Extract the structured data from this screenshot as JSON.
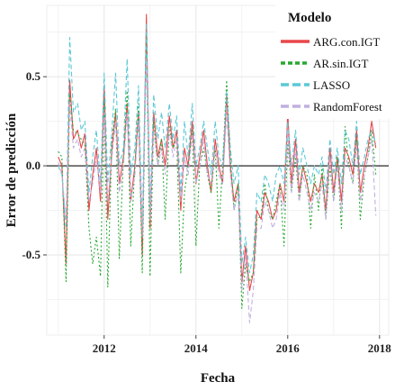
{
  "chart_data": {
    "type": "line",
    "xlabel": "Fecha",
    "ylabel": "Error de predicción",
    "legend_title": "Modelo",
    "legend_position": "top-right",
    "grid": true,
    "xlim": [
      2010.75,
      2018.2
    ],
    "ylim": [
      -0.95,
      0.9
    ],
    "x_ticks": [
      2012,
      2014,
      2016,
      2018
    ],
    "y_ticks": [
      -0.5,
      0.0,
      0.5
    ],
    "y_tick_labels": [
      "-0.5",
      "0.0",
      "0.5"
    ],
    "reference_line": 0.0,
    "x": [
      2011.0,
      2011.08,
      2011.17,
      2011.25,
      2011.33,
      2011.42,
      2011.5,
      2011.58,
      2011.67,
      2011.75,
      2011.83,
      2011.92,
      2012.0,
      2012.08,
      2012.17,
      2012.25,
      2012.33,
      2012.42,
      2012.5,
      2012.58,
      2012.67,
      2012.75,
      2012.83,
      2012.92,
      2013.0,
      2013.08,
      2013.17,
      2013.25,
      2013.33,
      2013.42,
      2013.5,
      2013.58,
      2013.67,
      2013.75,
      2013.83,
      2013.92,
      2014.0,
      2014.08,
      2014.17,
      2014.25,
      2014.33,
      2014.42,
      2014.5,
      2014.58,
      2014.67,
      2014.75,
      2014.83,
      2014.92,
      2015.0,
      2015.08,
      2015.17,
      2015.25,
      2015.33,
      2015.42,
      2015.5,
      2015.58,
      2015.67,
      2015.75,
      2015.83,
      2015.92,
      2016.0,
      2016.08,
      2016.17,
      2016.25,
      2016.33,
      2016.42,
      2016.5,
      2016.58,
      2016.67,
      2016.75,
      2016.83,
      2016.92,
      2017.0,
      2017.08,
      2017.17,
      2017.25,
      2017.33,
      2017.42,
      2017.5,
      2017.58,
      2017.67,
      2017.75,
      2017.83,
      2017.92
    ],
    "series": [
      {
        "name": "ARG.con.IGT",
        "color": "#e8474a",
        "style": "solid",
        "values": [
          0.05,
          0.0,
          -0.55,
          0.48,
          0.15,
          0.2,
          0.1,
          0.18,
          -0.25,
          -0.05,
          0.1,
          -0.2,
          0.45,
          -0.3,
          0.1,
          0.3,
          -0.1,
          0.05,
          0.35,
          -0.2,
          0.0,
          0.3,
          -0.5,
          0.85,
          -0.35,
          0.3,
          0.05,
          0.15,
          0.0,
          0.28,
          0.1,
          0.2,
          -0.25,
          0.1,
          0.0,
          0.25,
          -0.1,
          0.05,
          0.2,
          0.0,
          -0.15,
          0.15,
          0.0,
          -0.1,
          0.4,
          0.0,
          -0.2,
          -0.1,
          -0.65,
          -0.45,
          -0.7,
          -0.6,
          -0.25,
          -0.3,
          -0.15,
          -0.2,
          -0.3,
          -0.25,
          -0.1,
          -0.2,
          0.3,
          -0.1,
          0.15,
          -0.15,
          0.0,
          -0.1,
          -0.2,
          -0.1,
          -0.15,
          -0.05,
          -0.25,
          0.1,
          -0.15,
          0.05,
          -0.2,
          0.1,
          0.05,
          -0.05,
          0.2,
          -0.15,
          0.0,
          0.1,
          0.25,
          0.1
        ]
      },
      {
        "name": "AR.sin.IGT",
        "color": "#28a832",
        "style": "dotted",
        "values": [
          0.08,
          0.05,
          -0.65,
          0.4,
          0.2,
          0.18,
          0.15,
          0.12,
          -0.35,
          -0.55,
          -0.4,
          -0.62,
          0.38,
          -0.68,
          0.15,
          0.32,
          -0.52,
          0.05,
          0.42,
          -0.45,
          0.0,
          0.35,
          -0.6,
          0.75,
          -0.62,
          0.25,
          0.0,
          0.15,
          -0.3,
          0.22,
          0.1,
          0.15,
          -0.6,
          -0.15,
          0.0,
          0.2,
          -0.45,
          0.0,
          0.1,
          -0.05,
          -0.15,
          0.1,
          -0.35,
          0.0,
          0.48,
          0.05,
          -0.25,
          -0.1,
          -0.8,
          -0.55,
          -0.65,
          -0.6,
          -0.3,
          -0.28,
          -0.1,
          -0.25,
          -0.3,
          -0.2,
          -0.1,
          -0.45,
          0.15,
          -0.15,
          0.05,
          -0.2,
          0.0,
          -0.05,
          -0.35,
          -0.05,
          -0.25,
          0.0,
          -0.3,
          0.0,
          -0.2,
          0.05,
          -0.35,
          0.22,
          0.0,
          -0.1,
          0.15,
          -0.3,
          -0.05,
          0.05,
          0.2,
          -0.05
        ]
      },
      {
        "name": "LASSO",
        "color": "#5bc8d6",
        "style": "dashed",
        "values": [
          0.0,
          -0.05,
          -0.35,
          0.72,
          0.3,
          0.35,
          0.2,
          0.25,
          -0.15,
          0.05,
          0.2,
          -0.1,
          0.52,
          -0.1,
          0.2,
          0.52,
          0.0,
          0.1,
          0.6,
          -0.05,
          0.1,
          0.45,
          -0.35,
          0.8,
          -0.25,
          0.4,
          0.15,
          0.3,
          0.1,
          0.35,
          0.15,
          0.28,
          -0.15,
          0.25,
          0.05,
          0.35,
          0.0,
          0.1,
          0.25,
          0.1,
          -0.05,
          0.25,
          0.05,
          0.0,
          0.42,
          0.1,
          -0.1,
          0.0,
          -0.55,
          -0.4,
          -0.6,
          -0.5,
          -0.15,
          -0.2,
          -0.05,
          -0.1,
          -0.2,
          -0.05,
          0.0,
          -0.1,
          0.25,
          0.0,
          0.2,
          -0.05,
          0.1,
          0.0,
          -0.1,
          0.0,
          -0.05,
          0.05,
          -0.15,
          0.15,
          -0.05,
          0.1,
          -0.1,
          0.2,
          0.15,
          0.0,
          0.25,
          -0.05,
          0.05,
          0.15,
          0.2,
          0.12
        ]
      },
      {
        "name": "RandomForest",
        "color": "#c2afe0",
        "style": "dashed",
        "values": [
          0.02,
          -0.05,
          -0.3,
          0.35,
          0.1,
          0.15,
          0.05,
          0.1,
          -0.2,
          -0.1,
          0.05,
          -0.15,
          0.3,
          -0.2,
          0.05,
          0.25,
          -0.15,
          0.0,
          0.3,
          -0.2,
          -0.05,
          0.25,
          -0.4,
          0.6,
          -0.3,
          0.2,
          0.0,
          0.1,
          -0.05,
          0.2,
          0.05,
          0.15,
          -0.2,
          0.05,
          -0.05,
          0.18,
          -0.1,
          0.0,
          0.15,
          -0.05,
          -0.1,
          0.1,
          -0.05,
          -0.1,
          0.3,
          -0.05,
          -0.25,
          -0.15,
          -0.7,
          -0.5,
          -0.88,
          -0.7,
          -0.35,
          -0.35,
          -0.2,
          -0.25,
          -0.35,
          -0.3,
          -0.15,
          -0.25,
          0.2,
          -0.15,
          0.1,
          -0.2,
          -0.05,
          -0.15,
          -0.25,
          -0.15,
          -0.2,
          -0.1,
          -0.3,
          0.05,
          -0.2,
          0.0,
          -0.25,
          0.05,
          0.0,
          -0.1,
          0.12,
          -0.2,
          -0.05,
          0.05,
          0.15,
          -0.28
        ]
      }
    ]
  }
}
